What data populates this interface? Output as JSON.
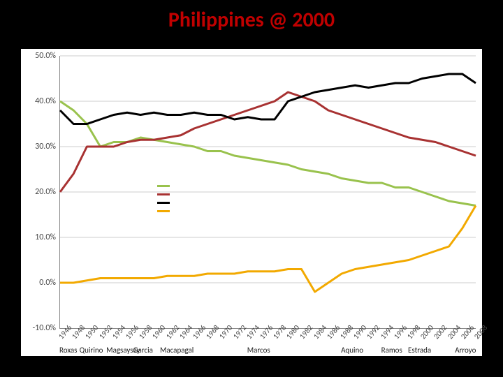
{
  "title": {
    "text": "Philippines @ 2000",
    "color": "#c00000",
    "fontsize": 30
  },
  "chart": {
    "type": "line",
    "background_color": "#ffffff",
    "grid_color": "#cccccc",
    "axis_color": "#888888",
    "label_fontsize": 12,
    "xlabel_fontsize": 11,
    "pres_fontsize": 11,
    "line_width": 3,
    "ylim": [
      -10,
      50
    ],
    "ytick_step": 10,
    "yticks": [
      {
        "v": 50,
        "label": "50.0%"
      },
      {
        "v": 40,
        "label": "40.0%"
      },
      {
        "v": 30,
        "label": "30.0%"
      },
      {
        "v": 20,
        "label": "20.0%"
      },
      {
        "v": 10,
        "label": "10.0%"
      },
      {
        "v": 0,
        "label": "0.0%"
      },
      {
        "v": -10,
        "label": "-10.0%"
      }
    ],
    "years": [
      1946,
      1948,
      1950,
      1952,
      1954,
      1956,
      1958,
      1960,
      1962,
      1964,
      1966,
      1968,
      1970,
      1972,
      1974,
      1976,
      1978,
      1980,
      1982,
      1984,
      1986,
      1988,
      1990,
      1992,
      1994,
      1996,
      1998,
      2000,
      2002,
      2004,
      2006,
      2008
    ],
    "series": [
      {
        "name": "green",
        "color": "#99c24d",
        "data": [
          40,
          38,
          35,
          30,
          31,
          31,
          32,
          31.5,
          31,
          30.5,
          30,
          29,
          29,
          28,
          27.5,
          27,
          26.5,
          26,
          25,
          24.5,
          24,
          23,
          22.5,
          22,
          22,
          21,
          21,
          20,
          19,
          18,
          17.5,
          17
        ]
      },
      {
        "name": "darkred",
        "color": "#a83232",
        "data": [
          20,
          24,
          30,
          30,
          30,
          31,
          31.5,
          31.5,
          32,
          32.5,
          34,
          35,
          36,
          37,
          38,
          39,
          40,
          42,
          41,
          40,
          38,
          37,
          36,
          35,
          34,
          33,
          32,
          31.5,
          31,
          30,
          29,
          28
        ]
      },
      {
        "name": "black",
        "color": "#000000",
        "data": [
          38,
          35,
          35,
          36,
          37,
          37.5,
          37,
          37.5,
          37,
          37,
          37.5,
          37,
          37,
          36,
          36.5,
          36,
          36,
          40,
          41,
          42,
          42.5,
          43,
          43.5,
          43,
          43.5,
          44,
          44,
          45,
          45.5,
          46,
          46,
          44
        ]
      },
      {
        "name": "orange",
        "color": "#f2a900",
        "data": [
          0,
          0,
          0.5,
          1,
          1,
          1,
          1,
          1,
          1.5,
          1.5,
          1.5,
          2,
          2,
          2,
          2.5,
          2.5,
          2.5,
          3,
          3,
          -2,
          0,
          2,
          3,
          3.5,
          4,
          4.5,
          5,
          6,
          7,
          8,
          12,
          17
        ]
      }
    ],
    "legend_order": [
      "green",
      "darkred",
      "black",
      "orange"
    ],
    "presidents": [
      {
        "name": "Roxas",
        "year": 1946
      },
      {
        "name": "Quirino",
        "year": 1949
      },
      {
        "name": "Magsaysay",
        "year": 1953
      },
      {
        "name": "Garcia",
        "year": 1957
      },
      {
        "name": "Macapagal",
        "year": 1961
      },
      {
        "name": "Marcos",
        "year": 1974
      },
      {
        "name": "Aquino",
        "year": 1988
      },
      {
        "name": "Ramos",
        "year": 1994
      },
      {
        "name": "Estrada",
        "year": 1998
      },
      {
        "name": "Arroyo",
        "year": 2005
      }
    ]
  }
}
